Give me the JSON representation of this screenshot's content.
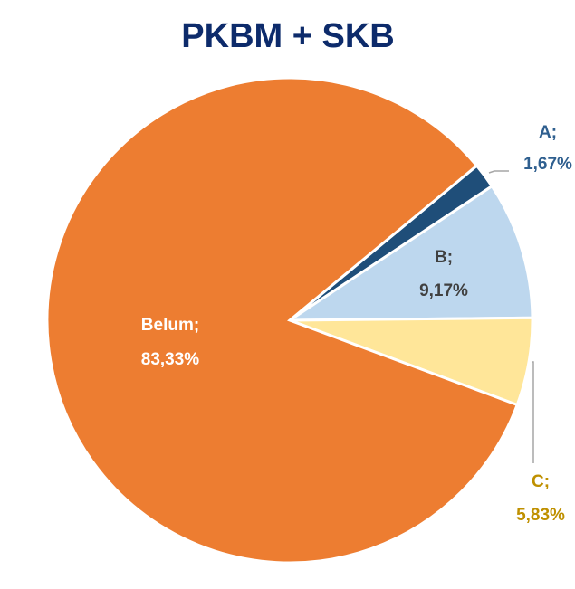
{
  "chart_data": {
    "type": "pie",
    "title": "PKBM + SKB",
    "categories": [
      "A;",
      "B;",
      "C;",
      "Belum;"
    ],
    "values": [
      1.67,
      9.17,
      5.83,
      83.33
    ],
    "value_labels": [
      "1,67%",
      "9,17%",
      "5,83%",
      "83,33%"
    ],
    "colors": [
      "#1f4e79",
      "#bdd7ee",
      "#ffe699",
      "#ed7d31"
    ],
    "label_colors": [
      "#2f5f8f",
      "#404040",
      "#bf9000",
      "#ffffff"
    ]
  }
}
